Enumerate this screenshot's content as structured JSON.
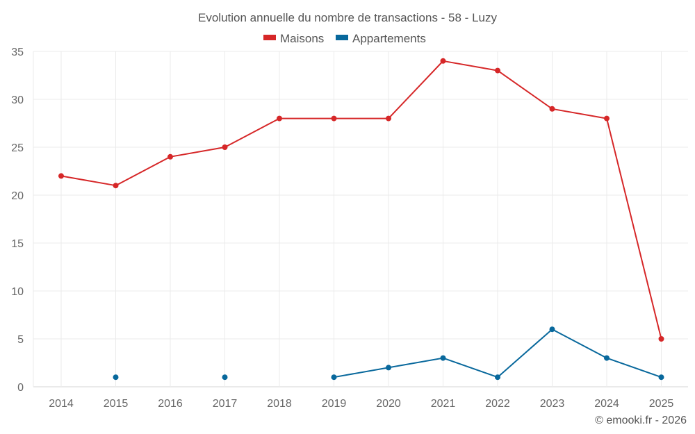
{
  "chart_data": {
    "type": "line",
    "title": "Evolution annuelle du nombre de transactions - 58 - Luzy",
    "categories": [
      "2014",
      "2015",
      "2016",
      "2017",
      "2018",
      "2019",
      "2020",
      "2021",
      "2022",
      "2023",
      "2024",
      "2025"
    ],
    "ylim": [
      0,
      35
    ],
    "yticks": [
      0,
      5,
      10,
      15,
      20,
      25,
      30,
      35
    ],
    "grid": true,
    "legend_position": "top-center",
    "series": [
      {
        "name": "Maisons",
        "color": "#d62728",
        "values": [
          22,
          21,
          24,
          25,
          28,
          28,
          28,
          34,
          33,
          29,
          28,
          5
        ]
      },
      {
        "name": "Appartements",
        "color": "#08689c",
        "values": [
          null,
          1,
          null,
          1,
          null,
          1,
          2,
          3,
          1,
          6,
          3,
          1
        ]
      }
    ]
  },
  "footer": {
    "copyright": "© emooki.fr - 2026"
  }
}
